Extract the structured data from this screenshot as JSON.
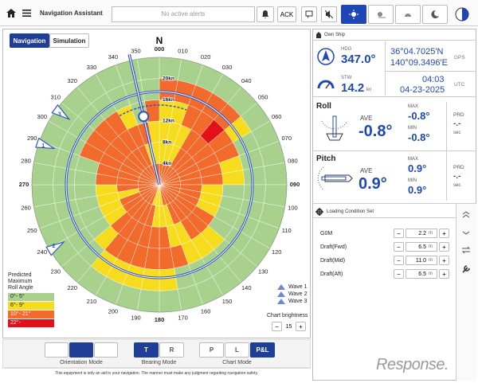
{
  "header": {
    "title": "Navigation Assistant",
    "alert": "No active alerts",
    "ack": "ACK"
  },
  "tabs": [
    "Navigation",
    "Simulation"
  ],
  "chart": {
    "north": "N",
    "bearing_labels": [
      "000",
      "010",
      "020",
      "030",
      "040",
      "050",
      "060",
      "070",
      "080",
      "090",
      "100",
      "110",
      "120",
      "130",
      "140",
      "150",
      "160",
      "170",
      "180",
      "190",
      "200",
      "210",
      "220",
      "230",
      "240",
      "250",
      "260",
      "270",
      "280",
      "290",
      "300",
      "310",
      "320",
      "330",
      "340",
      "350"
    ],
    "speed_labels": [
      "4kn",
      "8kn",
      "12kn",
      "16kn",
      "20kn"
    ],
    "roll_grid": [
      [
        2,
        1,
        1,
        1,
        2,
        0
      ],
      [
        2,
        1,
        1,
        1,
        2,
        0
      ],
      [
        2,
        1,
        1,
        2,
        2,
        0
      ],
      [
        2,
        2,
        2,
        2,
        2,
        0
      ],
      [
        2,
        2,
        2,
        3,
        2,
        0
      ],
      [
        2,
        2,
        2,
        2,
        1,
        0
      ],
      [
        2,
        2,
        2,
        2,
        0,
        0
      ],
      [
        2,
        2,
        2,
        1,
        0,
        0
      ],
      [
        2,
        2,
        2,
        1,
        0,
        0
      ],
      [
        2,
        2,
        1,
        0,
        0,
        0
      ],
      [
        2,
        2,
        1,
        0,
        0,
        0
      ],
      [
        2,
        2,
        1,
        0,
        0,
        0
      ],
      [
        2,
        2,
        2,
        0,
        0,
        0
      ],
      [
        2,
        2,
        2,
        1,
        0,
        0
      ],
      [
        2,
        2,
        2,
        1,
        0,
        0
      ],
      [
        2,
        2,
        1,
        1,
        0,
        0
      ],
      [
        2,
        1,
        1,
        2,
        0,
        0
      ],
      [
        1,
        1,
        2,
        2,
        1,
        0
      ],
      [
        1,
        1,
        2,
        2,
        1,
        0
      ],
      [
        1,
        2,
        2,
        2,
        1,
        0
      ],
      [
        2,
        2,
        2,
        2,
        1,
        0
      ],
      [
        2,
        2,
        2,
        2,
        1,
        0
      ],
      [
        2,
        2,
        2,
        1,
        0,
        0
      ],
      [
        2,
        2,
        1,
        0,
        0,
        0
      ],
      [
        2,
        2,
        1,
        0,
        0,
        0
      ],
      [
        2,
        1,
        1,
        0,
        0,
        0
      ],
      [
        2,
        2,
        1,
        0,
        0,
        0
      ],
      [
        2,
        2,
        2,
        0,
        0,
        0
      ],
      [
        2,
        2,
        2,
        0,
        0,
        0
      ],
      [
        2,
        2,
        2,
        2,
        0,
        0
      ],
      [
        2,
        2,
        2,
        2,
        0,
        0
      ],
      [
        2,
        2,
        2,
        2,
        0,
        0
      ],
      [
        2,
        2,
        2,
        2,
        0,
        0
      ],
      [
        2,
        2,
        2,
        1,
        0,
        0
      ],
      [
        2,
        1,
        2,
        0,
        0,
        0
      ],
      [
        2,
        1,
        1,
        2,
        0,
        0
      ]
    ],
    "wave_markers": [
      1,
      2,
      3
    ],
    "legend": {
      "title": [
        "Predicted",
        "Maximum",
        "Roll Angle"
      ],
      "items": [
        {
          "label": "0°- 5°",
          "color": "#a9d18e"
        },
        {
          "label": "6°- 9°",
          "color": "#f7dc1e"
        },
        {
          "label": "10°- 21°",
          "color": "#f26a2c"
        },
        {
          "label": "22°-",
          "color": "#e3101a"
        }
      ]
    },
    "waves": [
      "Wave 1",
      "Wave 2",
      "Wave 3"
    ],
    "brightness": {
      "label": "Chart brightness",
      "value": 15
    }
  },
  "modes": {
    "orientation": "Orientation Mode",
    "bearing": {
      "label": "Bearing Mode",
      "options": [
        "T",
        "R"
      ]
    },
    "chart": {
      "label": "Chart Mode",
      "options": [
        "P",
        "L",
        "P&L"
      ]
    }
  },
  "footer": "This equipment is only an aid to your navigation. The mariner must make any judgment regarding navigation safety.",
  "own_ship": {
    "title": "Own Ship",
    "hdg_label": "HDG",
    "hdg": "347.0°",
    "stw_label": "STW",
    "stw": "14.2",
    "stw_unit": "kn",
    "lat": "36°04.7025'N",
    "lon": "140°09.3496'E",
    "gps": "GPS",
    "time": "04:03",
    "date": "04-23-2025",
    "utc": "UTC"
  },
  "roll": {
    "title": "Roll",
    "ave_label": "AVE",
    "ave": "-0.8°",
    "max_label": "MAX",
    "max": "-0.8°",
    "min_label": "MIN",
    "min": "-0.8°",
    "prd_label": "PRD",
    "prd": "-.-",
    "prd_unit": "sec"
  },
  "pitch": {
    "title": "Pitch",
    "ave_label": "AVE",
    "ave": "0.9°",
    "max_label": "MAX",
    "max": "0.9°",
    "min_label": "MIN",
    "min": "0.9°",
    "prd_label": "PRD",
    "prd": "-.-",
    "prd_unit": "sec"
  },
  "loading": {
    "title": "Loading Condition Set",
    "rows": [
      {
        "label": "G0M",
        "value": "2.2",
        "unit": "m"
      },
      {
        "label": "Draft(Fwd)",
        "value": "6.5",
        "unit": "m"
      },
      {
        "label": "Draft(Mid)",
        "value": "11.0",
        "unit": "m"
      },
      {
        "label": "Draft(Aft)",
        "value": "6.5",
        "unit": "m"
      }
    ]
  },
  "watermark": "Response."
}
